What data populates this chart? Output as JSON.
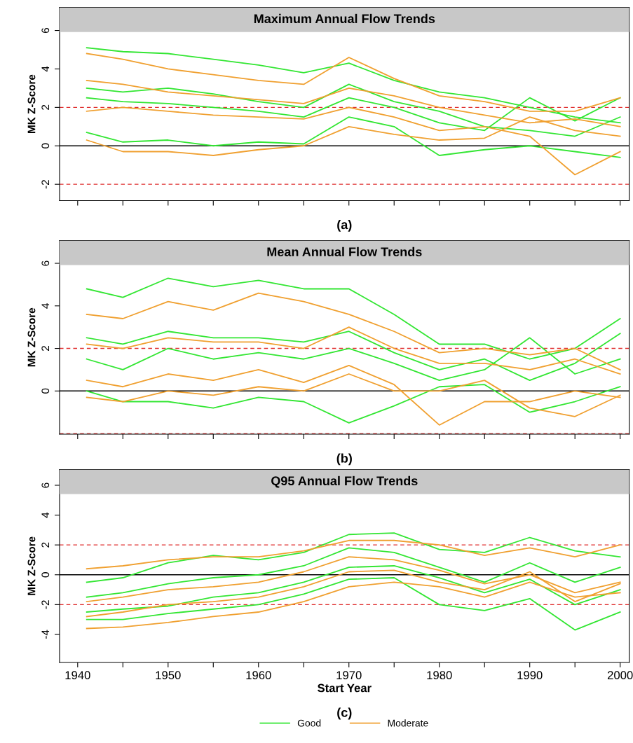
{
  "chart_data": [
    {
      "type": "line",
      "title": "Maximum Annual Flow Trends",
      "ylabel": "MK Z-Score",
      "annotations": [
        "(a)"
      ],
      "x": [
        1941,
        1945,
        1950,
        1955,
        1960,
        1965,
        1970,
        1975,
        1980,
        1985,
        1990,
        1995,
        2000
      ],
      "xlim": [
        1938,
        2001
      ],
      "xticks": [
        {
          "value": 1940,
          "label": null
        },
        {
          "value": 1945,
          "label": null
        },
        {
          "value": 1950,
          "label": null
        },
        {
          "value": 1955,
          "label": null
        },
        {
          "value": 1960,
          "label": null
        },
        {
          "value": 1965,
          "label": null
        },
        {
          "value": 1970,
          "label": null
        },
        {
          "value": 1975,
          "label": null
        },
        {
          "value": 1980,
          "label": null
        },
        {
          "value": 1985,
          "label": null
        },
        {
          "value": 1990,
          "label": null
        },
        {
          "value": 1995,
          "label": null
        },
        {
          "value": 2000,
          "label": null
        }
      ],
      "ylim": [
        -2.85,
        7.2
      ],
      "yticks": [
        -2,
        0,
        2,
        4,
        6
      ],
      "tick_labels": "y",
      "grid": false,
      "legend": false,
      "ref_lines": [
        {
          "axis": "y",
          "value": 0,
          "label": null,
          "color": "#000000",
          "line_style": "solid"
        },
        {
          "axis": "y",
          "value": 2,
          "label": null,
          "color": "#e03030",
          "line_style": "dashed"
        },
        {
          "axis": "y",
          "value": -2,
          "label": null,
          "color": "#e03030",
          "line_style": "dashed"
        }
      ],
      "series": [
        {
          "color": "#33e633",
          "values": [
            5.1,
            4.9,
            4.8,
            4.5,
            4.2,
            3.8,
            4.3,
            3.4,
            2.8,
            2.5,
            2.0,
            1.5,
            1.2
          ]
        },
        {
          "color": "#33e633",
          "values": [
            3.0,
            2.8,
            3.0,
            2.7,
            2.3,
            2.0,
            3.2,
            2.3,
            1.8,
            1.0,
            0.8,
            0.5,
            1.5
          ]
        },
        {
          "color": "#33e633",
          "values": [
            0.7,
            0.2,
            0.3,
            0.0,
            0.2,
            0.1,
            1.5,
            1.0,
            -0.5,
            -0.2,
            0.0,
            -0.3,
            -0.6
          ]
        },
        {
          "color": "#33e633",
          "values": [
            2.5,
            2.3,
            2.2,
            2.0,
            1.8,
            1.5,
            2.5,
            2.0,
            1.2,
            0.8,
            2.5,
            1.3,
            2.5
          ]
        },
        {
          "color": "#f0a030",
          "values": [
            4.8,
            4.5,
            4.0,
            3.7,
            3.4,
            3.2,
            4.6,
            3.5,
            2.6,
            2.3,
            1.8,
            1.8,
            2.5
          ]
        },
        {
          "color": "#f0a030",
          "values": [
            1.8,
            2.0,
            1.8,
            1.6,
            1.5,
            1.4,
            2.0,
            1.5,
            0.8,
            1.0,
            0.5,
            -1.5,
            -0.3
          ]
        },
        {
          "color": "#f0a030",
          "values": [
            0.3,
            -0.3,
            -0.3,
            -0.5,
            -0.2,
            0.0,
            1.0,
            0.6,
            0.3,
            0.4,
            1.5,
            0.8,
            0.5
          ]
        },
        {
          "color": "#f0a030",
          "values": [
            3.4,
            3.2,
            2.8,
            2.6,
            2.4,
            2.2,
            3.0,
            2.6,
            2.0,
            1.6,
            1.2,
            1.4,
            1.0
          ]
        }
      ]
    },
    {
      "type": "line",
      "title": "Mean Annual Flow Trends",
      "ylabel": "MK Z-Score",
      "annotations": [
        "(b)"
      ],
      "x": [
        1941,
        1945,
        1950,
        1955,
        1960,
        1965,
        1970,
        1975,
        1980,
        1985,
        1990,
        1995,
        2000
      ],
      "xlim": [
        1938,
        2001
      ],
      "xticks": [
        {
          "value": 1940,
          "label": null
        },
        {
          "value": 1945,
          "label": null
        },
        {
          "value": 1950,
          "label": null
        },
        {
          "value": 1955,
          "label": null
        },
        {
          "value": 1960,
          "label": null
        },
        {
          "value": 1965,
          "label": null
        },
        {
          "value": 1970,
          "label": null
        },
        {
          "value": 1975,
          "label": null
        },
        {
          "value": 1980,
          "label": null
        },
        {
          "value": 1985,
          "label": null
        },
        {
          "value": 1990,
          "label": null
        },
        {
          "value": 1995,
          "label": null
        },
        {
          "value": 2000,
          "label": null
        }
      ],
      "ylim": [
        -2.03,
        7.07
      ],
      "yticks": [
        0,
        2,
        4,
        6
      ],
      "tick_labels": "y",
      "grid": false,
      "legend": false,
      "ref_lines": [
        {
          "axis": "y",
          "value": 0,
          "label": null,
          "color": "#000000",
          "line_style": "solid"
        },
        {
          "axis": "y",
          "value": 2,
          "label": null,
          "color": "#e03030",
          "line_style": "dashed"
        },
        {
          "axis": "y",
          "value": -2,
          "label": null,
          "color": "#e03030",
          "line_style": "dashed"
        }
      ],
      "series": [
        {
          "color": "#33e633",
          "values": [
            4.8,
            4.4,
            5.3,
            4.9,
            5.2,
            4.8,
            4.8,
            3.6,
            2.2,
            2.2,
            1.5,
            2.0,
            3.4
          ]
        },
        {
          "color": "#33e633",
          "values": [
            2.5,
            2.2,
            2.8,
            2.5,
            2.5,
            2.3,
            2.8,
            1.8,
            1.0,
            1.5,
            0.5,
            1.3,
            2.7
          ]
        },
        {
          "color": "#33e633",
          "values": [
            0.0,
            -0.5,
            -0.5,
            -0.8,
            -0.3,
            -0.5,
            -1.5,
            -0.7,
            0.2,
            0.3,
            -1.0,
            -0.5,
            0.2
          ]
        },
        {
          "color": "#33e633",
          "values": [
            1.5,
            1.0,
            2.0,
            1.5,
            1.8,
            1.5,
            2.0,
            1.3,
            0.5,
            1.0,
            2.5,
            0.8,
            1.5
          ]
        },
        {
          "color": "#f0a030",
          "values": [
            3.6,
            3.4,
            4.2,
            3.8,
            4.6,
            4.2,
            3.6,
            2.8,
            1.8,
            2.0,
            1.7,
            2.0,
            1.0
          ]
        },
        {
          "color": "#f0a030",
          "values": [
            0.5,
            0.2,
            0.8,
            0.5,
            1.0,
            0.4,
            1.2,
            0.3,
            -1.6,
            -0.5,
            -0.5,
            0.0,
            -0.3
          ]
        },
        {
          "color": "#f0a030",
          "values": [
            -0.3,
            -0.5,
            0.0,
            -0.2,
            0.2,
            0.0,
            0.8,
            0.0,
            0.0,
            0.5,
            -0.8,
            -1.2,
            -0.2
          ]
        },
        {
          "color": "#f0a030",
          "values": [
            2.2,
            2.0,
            2.5,
            2.3,
            2.3,
            2.0,
            3.0,
            2.0,
            1.3,
            1.3,
            1.0,
            1.5,
            0.8
          ]
        }
      ]
    },
    {
      "type": "line",
      "title": "Q95 Annual Flow Trends",
      "ylabel": "MK Z-Score",
      "xlabel": "Start Year",
      "annotations": [
        "(c)"
      ],
      "x": [
        1941,
        1945,
        1950,
        1955,
        1960,
        1965,
        1970,
        1975,
        1980,
        1985,
        1990,
        1995,
        2000
      ],
      "xlim": [
        1938,
        2001
      ],
      "xticks": [
        1940,
        {
          "value": 1945,
          "label": null
        },
        1950,
        {
          "value": 1955,
          "label": null
        },
        1960,
        {
          "value": 1965,
          "label": null
        },
        1970,
        {
          "value": 1975,
          "label": null
        },
        1980,
        {
          "value": 1985,
          "label": null
        },
        1990,
        {
          "value": 1995,
          "label": null
        },
        2000
      ],
      "ylim": [
        -5.88,
        7.05
      ],
      "yticks": [
        -4,
        -2,
        0,
        2,
        4,
        6
      ],
      "grid": false,
      "legend": "bottom",
      "ref_lines": [
        {
          "axis": "y",
          "value": 0,
          "label": null,
          "color": "#000000",
          "line_style": "solid"
        },
        {
          "axis": "y",
          "value": 2,
          "label": null,
          "color": "#e03030",
          "line_style": "dashed"
        },
        {
          "axis": "y",
          "value": -2,
          "label": null,
          "color": "#e03030",
          "line_style": "dashed"
        }
      ],
      "series": [
        {
          "name": "Good",
          "color": "#33e633",
          "values": [
            -0.5,
            -0.2,
            0.8,
            1.3,
            1.0,
            1.5,
            2.7,
            2.8,
            1.7,
            1.5,
            2.5,
            1.6,
            1.2
          ]
        },
        {
          "color": "#33e633",
          "values": [
            -3.0,
            -3.0,
            -2.6,
            -2.3,
            -2.0,
            -1.3,
            -0.3,
            -0.2,
            -2.0,
            -2.4,
            -1.6,
            -3.7,
            -2.5
          ]
        },
        {
          "color": "#33e633",
          "values": [
            -1.5,
            -1.2,
            -0.6,
            -0.2,
            0.0,
            0.6,
            1.8,
            1.5,
            0.5,
            -0.5,
            0.8,
            -0.5,
            0.5
          ]
        },
        {
          "color": "#33e633",
          "values": [
            -2.5,
            -2.3,
            -2.1,
            -1.5,
            -1.2,
            -0.5,
            0.5,
            0.6,
            -0.2,
            -1.2,
            -0.3,
            -2.0,
            -1.0
          ]
        },
        {
          "name": "Moderate",
          "color": "#f0a030",
          "values": [
            0.4,
            0.6,
            1.0,
            1.2,
            1.2,
            1.6,
            2.3,
            2.3,
            2.0,
            1.3,
            1.8,
            1.2,
            2.0
          ]
        },
        {
          "color": "#f0a030",
          "values": [
            -3.6,
            -3.5,
            -3.2,
            -2.8,
            -2.5,
            -1.8,
            -0.8,
            -0.5,
            -0.8,
            -1.5,
            -0.5,
            -1.5,
            -1.2
          ]
        },
        {
          "color": "#f0a030",
          "values": [
            -1.8,
            -1.5,
            -1.0,
            -0.8,
            -0.5,
            0.2,
            1.2,
            1.0,
            0.3,
            -0.6,
            0.0,
            -1.2,
            -0.5
          ]
        },
        {
          "color": "#f0a030",
          "values": [
            -2.8,
            -2.5,
            -2.0,
            -1.8,
            -1.5,
            -0.8,
            0.2,
            0.3,
            -0.5,
            -1.0,
            0.2,
            -1.8,
            -0.6
          ]
        }
      ]
    }
  ]
}
